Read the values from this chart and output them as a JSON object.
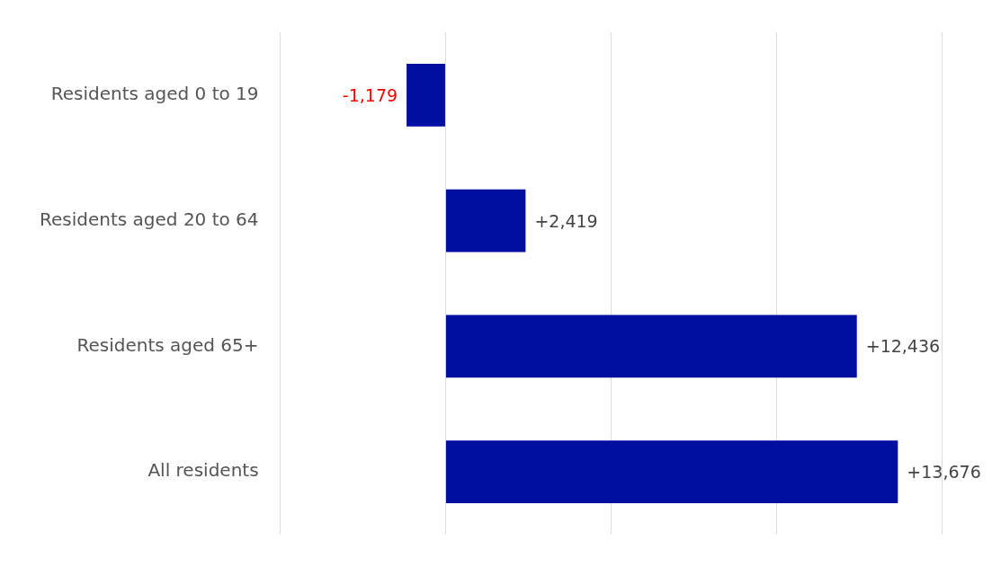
{
  "chart_data": {
    "type": "bar",
    "orientation": "horizontal",
    "categories": [
      "Residents aged 0 to 19",
      "Residents aged 20 to 64",
      "Residents aged 65+",
      "All residents"
    ],
    "values": [
      -1179,
      2419,
      12436,
      13676
    ],
    "value_labels": [
      "-1,179",
      "+2,419",
      "+12,436",
      "+13,676"
    ],
    "color": "#000f9f",
    "xlim": [
      -5000,
      15000
    ],
    "xticks": [
      {
        "value": -5000,
        "label": null
      },
      {
        "value": 0,
        "label": null
      },
      {
        "value": 5000,
        "label": null
      },
      {
        "value": 10000,
        "label": null
      },
      {
        "value": 15000,
        "label": null
      }
    ],
    "grid": "x",
    "legend": false,
    "tick_labels": "y"
  }
}
